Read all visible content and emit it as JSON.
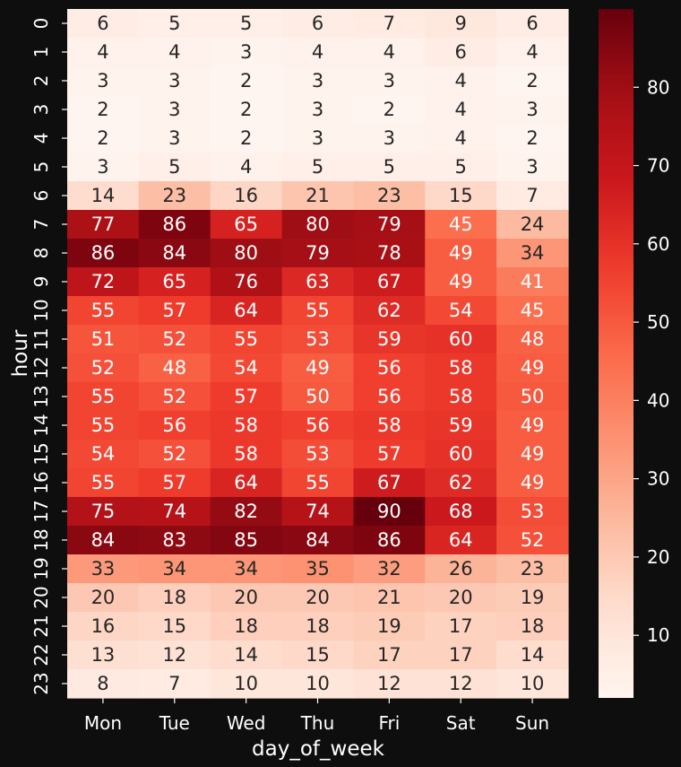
{
  "chart_data": {
    "type": "heatmap",
    "xlabel": "day_of_week",
    "ylabel": "hour",
    "x_categories": [
      "Mon",
      "Tue",
      "Wed",
      "Thu",
      "Fri",
      "Sat",
      "Sun"
    ],
    "y_categories": [
      "0",
      "1",
      "2",
      "3",
      "4",
      "5",
      "6",
      "7",
      "8",
      "9",
      "10",
      "11",
      "12",
      "13",
      "14",
      "15",
      "16",
      "17",
      "18",
      "19",
      "20",
      "21",
      "22",
      "23"
    ],
    "values": [
      [
        6,
        5,
        5,
        6,
        7,
        9,
        6
      ],
      [
        4,
        4,
        3,
        4,
        4,
        6,
        4
      ],
      [
        3,
        3,
        2,
        3,
        3,
        4,
        2
      ],
      [
        2,
        3,
        2,
        3,
        2,
        4,
        3
      ],
      [
        2,
        3,
        2,
        3,
        3,
        4,
        2
      ],
      [
        3,
        5,
        4,
        5,
        5,
        5,
        3
      ],
      [
        14,
        23,
        16,
        21,
        23,
        15,
        7
      ],
      [
        77,
        86,
        65,
        80,
        79,
        45,
        24
      ],
      [
        86,
        84,
        80,
        79,
        78,
        49,
        34
      ],
      [
        72,
        65,
        76,
        63,
        67,
        49,
        41
      ],
      [
        55,
        57,
        64,
        55,
        62,
        54,
        45
      ],
      [
        51,
        52,
        55,
        53,
        59,
        60,
        48
      ],
      [
        52,
        48,
        54,
        49,
        56,
        58,
        49
      ],
      [
        55,
        52,
        57,
        50,
        56,
        58,
        50
      ],
      [
        55,
        56,
        58,
        56,
        58,
        59,
        49
      ],
      [
        54,
        52,
        58,
        53,
        57,
        60,
        49
      ],
      [
        55,
        57,
        64,
        55,
        67,
        62,
        49
      ],
      [
        75,
        74,
        82,
        74,
        90,
        68,
        53
      ],
      [
        84,
        83,
        85,
        84,
        86,
        64,
        52
      ],
      [
        33,
        34,
        34,
        35,
        32,
        26,
        23
      ],
      [
        20,
        18,
        20,
        20,
        21,
        20,
        19
      ],
      [
        16,
        15,
        18,
        18,
        19,
        17,
        18
      ],
      [
        13,
        12,
        14,
        15,
        17,
        17,
        14
      ],
      [
        8,
        7,
        10,
        10,
        12,
        12,
        10
      ]
    ],
    "colormap": "Reds",
    "value_range": [
      2,
      90
    ],
    "colorbar_ticks": [
      10,
      20,
      30,
      40,
      50,
      60,
      70,
      80
    ],
    "annotated": true,
    "colors": {
      "background": "#0e0e0e",
      "text_light": "#ffffff",
      "text_dark": "#262626"
    }
  }
}
